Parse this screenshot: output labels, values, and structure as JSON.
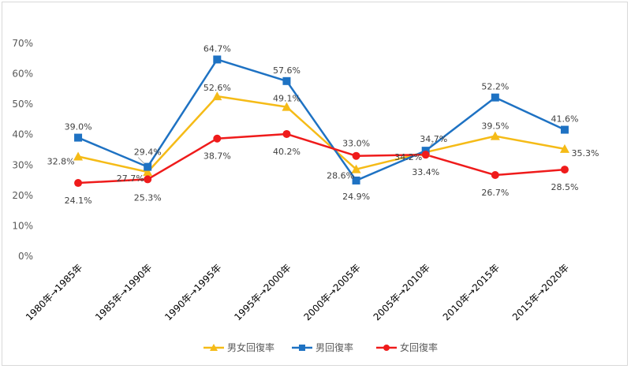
{
  "chart_data": {
    "type": "line",
    "categories": [
      "1980年→1985年",
      "1985年→1990年",
      "1990年→1995年",
      "1995年→2000年",
      "2000年→2005年",
      "2005年→2010年",
      "2010年→2015年",
      "2015年→2020年"
    ],
    "ylim": [
      0,
      70
    ],
    "yticks": [
      "0%",
      "10%",
      "20%",
      "30%",
      "40%",
      "50%",
      "60%",
      "70%"
    ],
    "grid": false,
    "legend": "bottom",
    "series": [
      {
        "name": "男女回復率",
        "color": "#f5bb17",
        "marker": "triangle",
        "values": [
          32.8,
          27.7,
          52.6,
          49.1,
          28.6,
          34.2,
          39.5,
          35.3
        ],
        "labels": [
          "32.8%",
          "27.7%",
          "52.6%",
          "49.1%",
          "28.6%",
          "34.2%",
          "39.5%",
          "35.3%"
        ]
      },
      {
        "name": "男回復率",
        "color": "#1e72c3",
        "marker": "square",
        "values": [
          39.0,
          29.4,
          64.7,
          57.6,
          24.9,
          34.7,
          52.2,
          41.6
        ],
        "labels": [
          "39.0%",
          "29.4%",
          "64.7%",
          "57.6%",
          "24.9%",
          "34.7%",
          "52.2%",
          "41.6%"
        ]
      },
      {
        "name": "女回復率",
        "color": "#ef1b1b",
        "marker": "circle",
        "values": [
          24.1,
          25.3,
          38.7,
          40.2,
          33.0,
          33.4,
          26.7,
          28.5
        ],
        "labels": [
          "24.1%",
          "25.3%",
          "38.7%",
          "40.2%",
          "33.0%",
          "33.4%",
          "26.7%",
          "28.5%"
        ]
      }
    ]
  }
}
